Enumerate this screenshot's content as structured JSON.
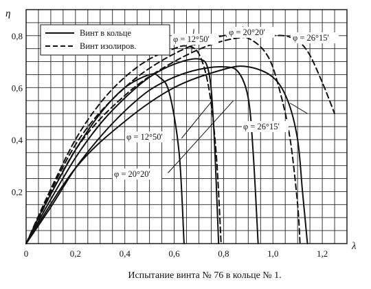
{
  "chart_data": {
    "type": "line",
    "title": "",
    "caption": "Испытание винта № 76 в кольце № 1.",
    "xlabel": "λ",
    "ylabel": "η",
    "xlim": [
      0,
      1.3
    ],
    "ylim": [
      0,
      0.9
    ],
    "x_ticks": [
      "0",
      "0,2",
      "0,4",
      "0,6",
      "0,8",
      "1,0",
      "1,2"
    ],
    "x_tick_values": [
      0,
      0.2,
      0.4,
      0.6,
      0.8,
      1.0,
      1.2
    ],
    "y_ticks": [
      "0,2",
      "0,4",
      "0,6",
      "0,8"
    ],
    "y_tick_values": [
      0.2,
      0.4,
      0.6,
      0.8
    ],
    "grid": true,
    "legend": {
      "placement": "top-left",
      "entries": [
        {
          "label": "Винт в кольце",
          "style": "solid"
        },
        {
          "label": "Винт изолиров.",
          "style": "dashed"
        }
      ]
    },
    "series": [
      {
        "style": "solid",
        "angle": "12°50'",
        "x": [
          0,
          0.05,
          0.1,
          0.2,
          0.3,
          0.4,
          0.5,
          0.54,
          0.58,
          0.62,
          0.64
        ],
        "y": [
          0,
          0.1,
          0.19,
          0.36,
          0.5,
          0.6,
          0.65,
          0.64,
          0.58,
          0.35,
          0
        ]
      },
      {
        "style": "solid",
        "angle": "20°20'",
        "x": [
          0,
          0.1,
          0.2,
          0.3,
          0.4,
          0.5,
          0.6,
          0.7,
          0.74,
          0.76,
          0.78
        ],
        "y": [
          0,
          0.17,
          0.33,
          0.46,
          0.56,
          0.64,
          0.69,
          0.71,
          0.66,
          0.45,
          0
        ]
      },
      {
        "style": "solid",
        "angle": "26°15'",
        "x": [
          0,
          0.1,
          0.2,
          0.3,
          0.4,
          0.5,
          0.6,
          0.7,
          0.8,
          0.86,
          0.9,
          0.92,
          0.94
        ],
        "y": [
          0,
          0.14,
          0.29,
          0.41,
          0.51,
          0.59,
          0.64,
          0.67,
          0.68,
          0.66,
          0.56,
          0.35,
          0
        ]
      },
      {
        "style": "solid",
        "angle": "26°15'",
        "x": [
          0,
          0.2,
          0.4,
          0.6,
          0.8,
          0.9,
          1.0,
          1.06,
          1.1,
          1.12,
          1.14
        ],
        "y": [
          0,
          0.29,
          0.47,
          0.6,
          0.67,
          0.68,
          0.64,
          0.55,
          0.4,
          0.2,
          0
        ]
      },
      {
        "style": "dashed",
        "angle": "12°50'",
        "x": [
          0,
          0.1,
          0.2,
          0.3,
          0.4,
          0.5,
          0.6,
          0.65,
          0.7,
          0.74,
          0.77,
          0.79
        ],
        "y": [
          0,
          0.21,
          0.4,
          0.54,
          0.64,
          0.71,
          0.75,
          0.76,
          0.73,
          0.6,
          0.35,
          0
        ]
      },
      {
        "style": "dashed",
        "angle": "20°20'",
        "x": [
          0,
          0.2,
          0.4,
          0.6,
          0.8,
          0.9,
          0.98,
          1.03,
          1.07,
          1.1,
          1.11
        ],
        "y": [
          0,
          0.38,
          0.6,
          0.73,
          0.8,
          0.79,
          0.72,
          0.58,
          0.4,
          0.15,
          0
        ]
      },
      {
        "style": "dashed",
        "angle": "26°15'",
        "x": [
          0,
          0.2,
          0.4,
          0.6,
          0.8,
          1.0,
          1.08,
          1.14,
          1.2,
          1.25
        ],
        "y": [
          0,
          0.36,
          0.57,
          0.7,
          0.78,
          0.8,
          0.79,
          0.74,
          0.62,
          0.5
        ]
      }
    ],
    "annotations": [
      {
        "text": "φ = 12°50'"
      },
      {
        "text": "φ = 20°20'"
      },
      {
        "text": "φ = 26°15'"
      },
      {
        "text": "φ = 12°50'"
      },
      {
        "text": "φ = 20°20'"
      },
      {
        "text": "φ = 26°15'"
      }
    ]
  }
}
